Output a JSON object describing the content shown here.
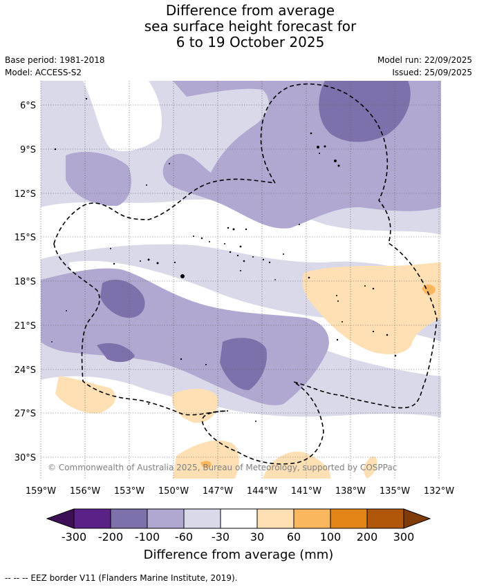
{
  "title": {
    "line1": "Difference from average",
    "line2": "sea surface height forecast for",
    "line3": "6 to 19 October 2025"
  },
  "meta": {
    "base_period": "Base period: 1981-2018",
    "model": "Model: ACCESS-S2",
    "model_run": "Model run: 22/09/2025",
    "issued": "Issued: 25/09/2025"
  },
  "map": {
    "lat_labels": [
      "6°S",
      "9°S",
      "12°S",
      "15°S",
      "18°S",
      "21°S",
      "24°S",
      "27°S",
      "30°S"
    ],
    "lon_labels": [
      "159°W",
      "156°W",
      "153°W",
      "150°W",
      "147°W",
      "144°W",
      "141°W",
      "138°W",
      "135°W",
      "132°W"
    ],
    "copyright": "© Commonwealth of Australia 2025, Bureau of Meteorology, supported by COSPPac"
  },
  "colorbar": {
    "title": "Difference from average (mm)",
    "tick_labels": [
      "-300",
      "-200",
      "-100",
      "-60",
      "-30",
      "30",
      "60",
      "100",
      "200",
      "300"
    ],
    "colors": {
      "lt_-300": "#3d0f57",
      "-300_-200": "#5a2287",
      "-200_-100": "#7d70ab",
      "-100_-60": "#b0a8d0",
      "-60_-30": "#d9d9ea",
      "-30_30": "#ffffff",
      "30_60": "#fee0b4",
      "60_100": "#fbb75e",
      "100_200": "#e48518",
      "200_300": "#b1570b",
      "gt_300": "#7f3b08"
    }
  },
  "footer": {
    "legend_text": "--  --  -- EEZ border V11 (Flanders Marine Institute, 2019)."
  }
}
